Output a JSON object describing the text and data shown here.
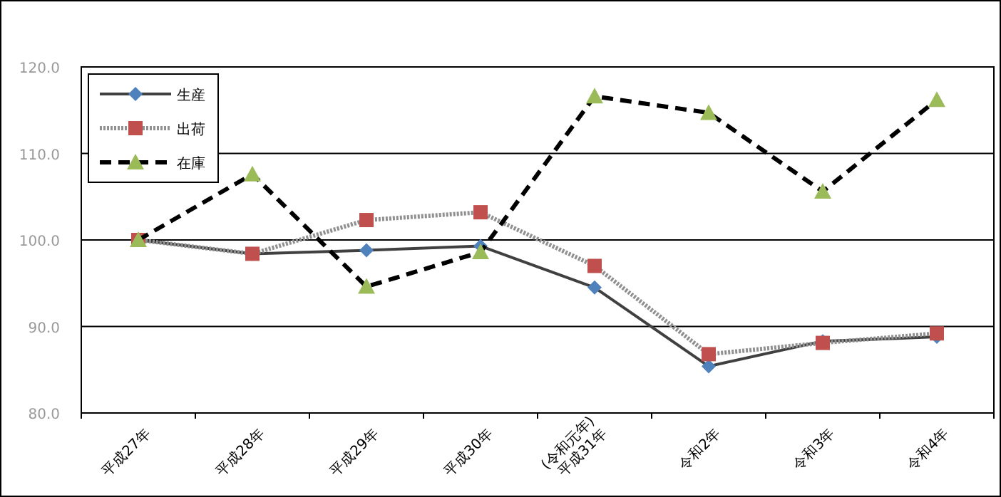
{
  "chart_data": {
    "type": "line",
    "categories": [
      "平成27年",
      "平成28年",
      "平成29年",
      "平成30年",
      "(令和元年)\n平成31年",
      "令和2年",
      "令和3年",
      "令和4年"
    ],
    "series": [
      {
        "name": "生産",
        "color": "#4f81bd",
        "marker": "diamond",
        "line_style": "solid",
        "values": [
          100,
          98.4,
          98.8,
          99.3,
          94.5,
          85.4,
          88.3,
          88.8
        ]
      },
      {
        "name": "出荷",
        "color": "#c0504d",
        "marker": "square",
        "line_style": "dotted",
        "values": [
          100,
          98.4,
          102.3,
          103.2,
          97.0,
          86.8,
          88.1,
          89.2
        ]
      },
      {
        "name": "在庫",
        "color": "#9bbb59",
        "marker": "triangle",
        "line_style": "dashed",
        "values": [
          100,
          107.6,
          94.6,
          98.6,
          116.6,
          114.7,
          105.6,
          116.2
        ]
      }
    ],
    "ylim": [
      80,
      120
    ],
    "yticks": [
      {
        "value": 80,
        "label": "80.0"
      },
      {
        "value": 90,
        "label": "90.0"
      },
      {
        "value": 100,
        "label": "100.0"
      },
      {
        "value": 110,
        "label": "110.0"
      },
      {
        "value": 120,
        "label": "120.0"
      }
    ],
    "grid": "y",
    "legend": "top left"
  }
}
